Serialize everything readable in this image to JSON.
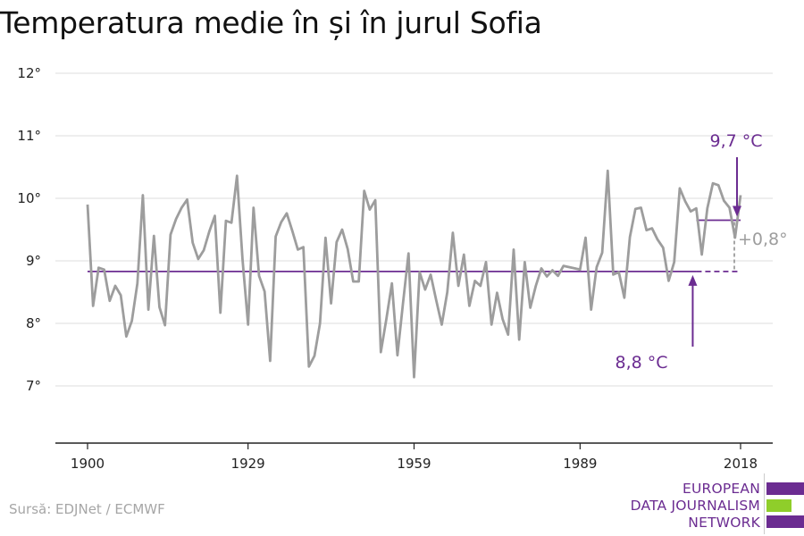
{
  "chart_data": {
    "type": "line",
    "title": "Temperatura medie în și în jurul Sofia",
    "x_ticks": [
      "1900",
      "1929",
      "1959",
      "1989",
      "2018"
    ],
    "y_ticks": [
      "7°",
      "8°",
      "9°",
      "10°",
      "11°",
      "12°"
    ],
    "xlim": [
      1900,
      2018
    ],
    "ylim": [
      6,
      12
    ],
    "grid": true,
    "series": [
      {
        "color": "#9d9d9d",
        "x": [
          1900,
          1901,
          1902,
          1903,
          1904,
          1905,
          1906,
          1907,
          1908,
          1909,
          1910,
          1911,
          1912,
          1913,
          1914,
          1915,
          1916,
          1917,
          1918,
          1919,
          1920,
          1921,
          1922,
          1923,
          1924,
          1925,
          1926,
          1927,
          1928,
          1929,
          1930,
          1931,
          1932,
          1933,
          1934,
          1935,
          1936,
          1937,
          1938,
          1939,
          1940,
          1941,
          1942,
          1943,
          1944,
          1945,
          1946,
          1947,
          1948,
          1949,
          1950,
          1951,
          1952,
          1953,
          1954,
          1955,
          1956,
          1957,
          1958,
          1959,
          1960,
          1961,
          1962,
          1963,
          1964,
          1965,
          1966,
          1967,
          1968,
          1969,
          1970,
          1971,
          1972,
          1973,
          1974,
          1975,
          1976,
          1977,
          1978,
          1979,
          1980,
          1981,
          1982,
          1983,
          1984,
          1985,
          1986,
          1987,
          1988,
          1989,
          1990,
          1991,
          1992,
          1993,
          1994,
          1995,
          1996,
          1997,
          1998,
          1999,
          2000,
          2001,
          2002,
          2003,
          2004,
          2005,
          2006,
          2007,
          2008,
          2009,
          2010,
          2011,
          2012,
          2013,
          2014,
          2015,
          2016,
          2017,
          2018
        ],
        "values": [
          9.9,
          8.28,
          8.89,
          8.86,
          8.36,
          8.6,
          8.45,
          7.79,
          8.04,
          8.64,
          10.05,
          8.22,
          9.4,
          8.26,
          7.97,
          9.42,
          9.67,
          9.85,
          9.98,
          9.29,
          9.03,
          9.17,
          9.47,
          9.72,
          8.17,
          9.64,
          9.61,
          10.36,
          9.02,
          7.98,
          9.85,
          8.76,
          8.51,
          7.4,
          9.39,
          9.62,
          9.76,
          9.48,
          9.18,
          9.22,
          7.31,
          7.48,
          8.0,
          9.37,
          8.32,
          9.3,
          9.5,
          9.19,
          8.67,
          8.67,
          10.12,
          9.82,
          9.97,
          7.54,
          8.07,
          8.64,
          7.49,
          8.32,
          9.12,
          7.14,
          8.82,
          8.54,
          8.78,
          8.37,
          7.98,
          8.5,
          9.45,
          8.6,
          9.1,
          8.28,
          8.68,
          8.6,
          8.98,
          7.98,
          8.49,
          8.07,
          7.82,
          9.18,
          7.74,
          8.98,
          8.25,
          8.6,
          8.88,
          8.75,
          8.85,
          8.76,
          8.92,
          8.9,
          8.88,
          8.86,
          9.37,
          8.22,
          8.9,
          9.13,
          10.44,
          8.78,
          8.82,
          8.41,
          9.38,
          9.83,
          9.85,
          9.49,
          9.52,
          9.34,
          9.21,
          8.68,
          8.98,
          10.16,
          9.95,
          9.79,
          9.84,
          9.1,
          9.84,
          10.24,
          10.21,
          9.96,
          9.85,
          9.37,
          10.05
        ]
      }
    ],
    "reference_lines": [
      {
        "name": "mean-1900-2018",
        "y": 8.83,
        "from": 1900,
        "to": 2010,
        "dashed_to": 2018,
        "color": "#6b2c91"
      },
      {
        "name": "mean-recent",
        "y": 9.65,
        "from": 2010,
        "to": 2018,
        "color": "#6b2c91"
      }
    ],
    "annotations": [
      {
        "name": "recent-mean-label",
        "text": "9,7 °C",
        "color": "#6b2c91",
        "points_to_year": 2018,
        "points_to_value": 9.65
      },
      {
        "name": "baseline-mean-label",
        "text": "8,8 °C",
        "color": "#6b2c91",
        "points_to_year": 2010,
        "points_to_value": 8.83
      },
      {
        "name": "difference-label",
        "text": "+0,8°",
        "color": "#9d9d9d"
      }
    ]
  },
  "source": "Sursă: EDJNet / ECMWF",
  "logo": {
    "lines": [
      "EUROPEAN",
      "DATA JOURNALISM",
      "NETWORK"
    ],
    "colors": {
      "purple": "#6b2c91",
      "green": "#8fce2a"
    }
  }
}
